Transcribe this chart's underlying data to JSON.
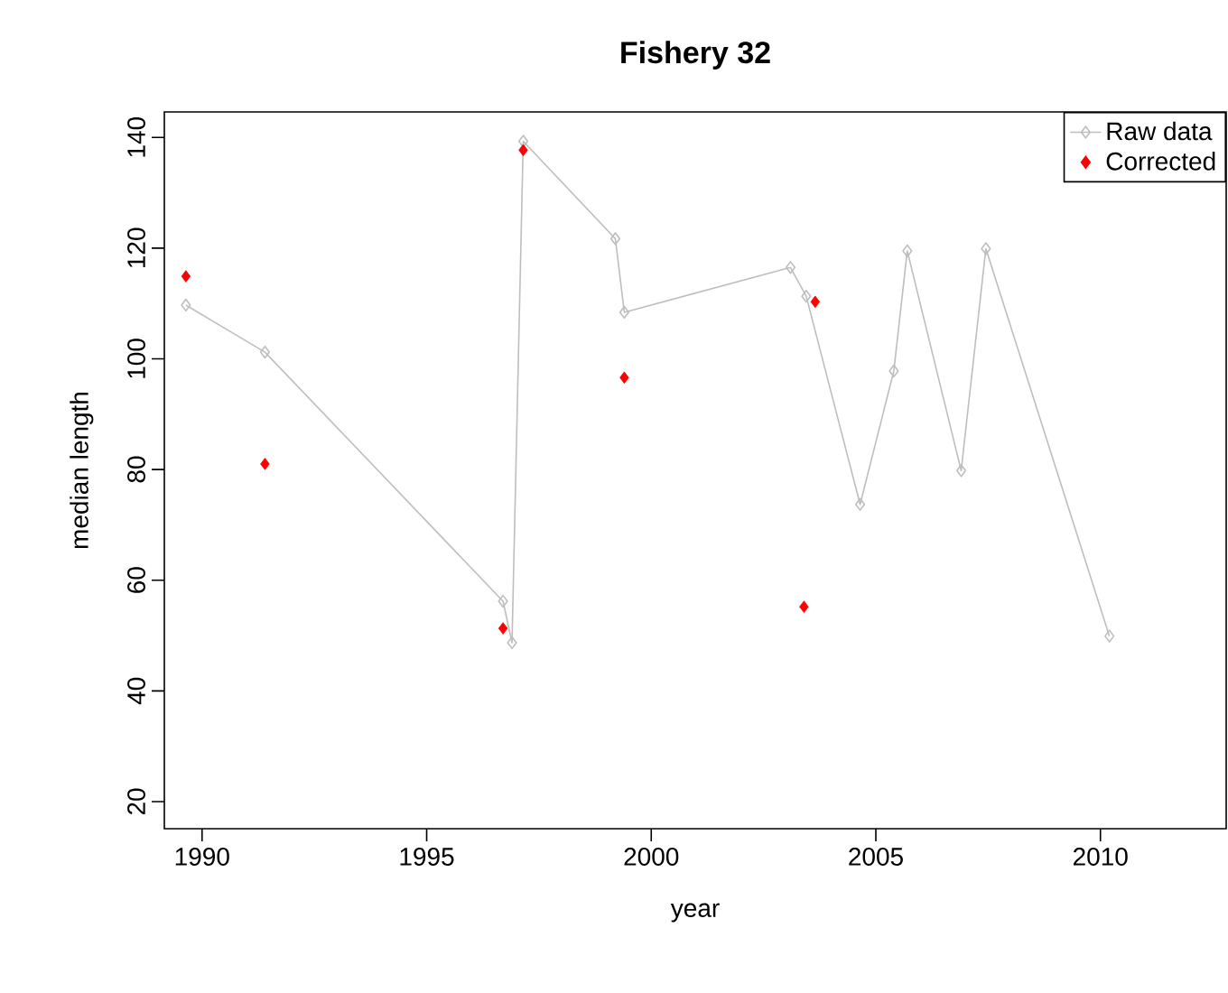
{
  "chart_data": {
    "type": "line",
    "title": "Fishery 32",
    "xlabel": "year",
    "ylabel": "median length",
    "xlim": [
      1989.16,
      2012.8
    ],
    "ylim": [
      15.1,
      144.6
    ],
    "xticks": [
      1990,
      1995,
      2000,
      2005,
      2010
    ],
    "yticks": [
      20,
      40,
      60,
      80,
      100,
      120,
      140
    ],
    "legend": "top right",
    "marker": "diamond",
    "series": [
      {
        "name": "Raw data",
        "color": "#bebebe",
        "x": [
          1989.64,
          1991.4,
          1996.7,
          1996.9,
          1997.15,
          1999.2,
          1999.4,
          2003.1,
          2003.45,
          2004.65,
          2005.4,
          2005.7,
          2006.9,
          2007.45,
          2010.2
        ],
        "values": [
          109.7,
          101.2,
          56.2,
          48.7,
          139.3,
          121.7,
          108.4,
          116.5,
          111.3,
          73.7,
          97.8,
          119.5,
          79.8,
          119.9,
          49.9
        ]
      },
      {
        "name": "Corrected",
        "type": "scatter",
        "color": "#ff0000",
        "x": [
          1989.64,
          1991.4,
          1996.7,
          1997.15,
          1999.4,
          2003.4,
          2003.65
        ],
        "values": [
          114.9,
          81.0,
          51.3,
          137.7,
          96.6,
          55.2,
          110.3
        ]
      }
    ]
  }
}
